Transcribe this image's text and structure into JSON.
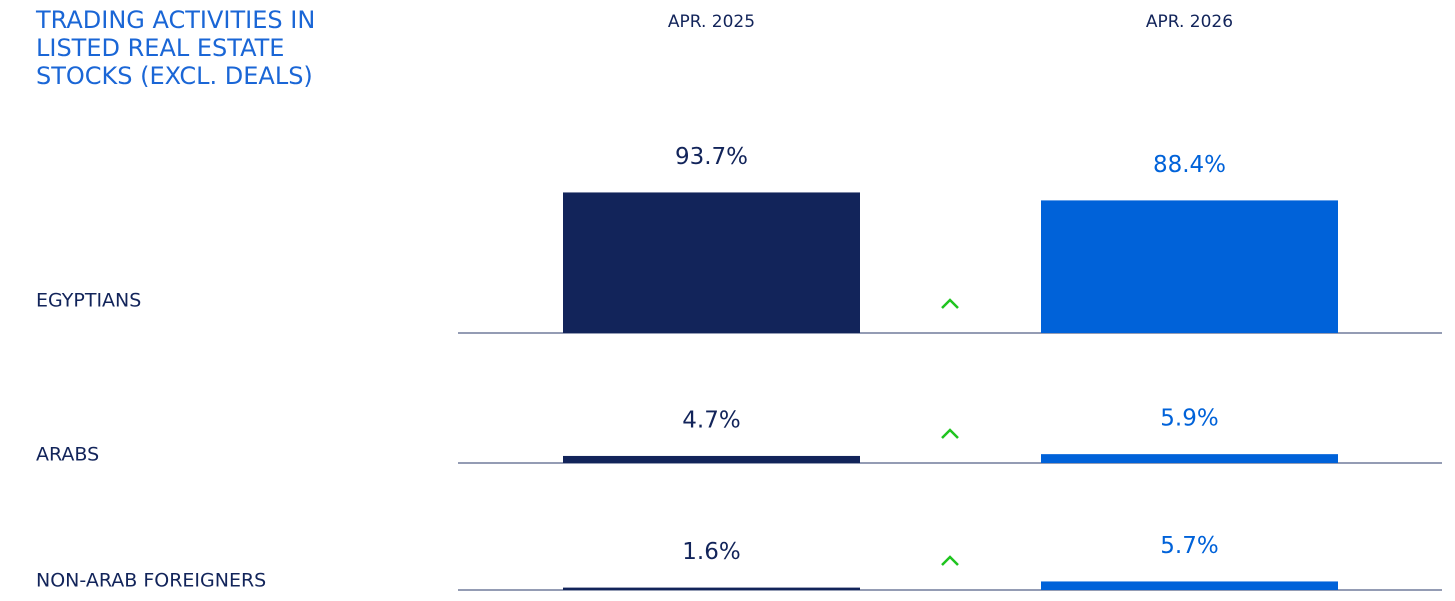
{
  "chart_data": {
    "type": "bar",
    "title": "TRADING ACTIVITIES IN LISTED REAL ESTATE STOCKS (EXCL. DEALS)",
    "categories": [
      "EGYPTIANS",
      "ARABS",
      "NON-ARAB FOREIGNERS"
    ],
    "series": [
      {
        "name": "APR. 2025",
        "color": "#12245a",
        "values": [
          93.7,
          4.7,
          1.6
        ],
        "value_labels": [
          "93.7%",
          "4.7%",
          "1.6%"
        ]
      },
      {
        "name": "APR. 2026",
        "color": "#0062d9",
        "values": [
          88.4,
          5.9,
          5.7
        ],
        "value_labels": [
          "88.4%",
          "5.9%",
          "5.7%"
        ]
      }
    ]
  }
}
